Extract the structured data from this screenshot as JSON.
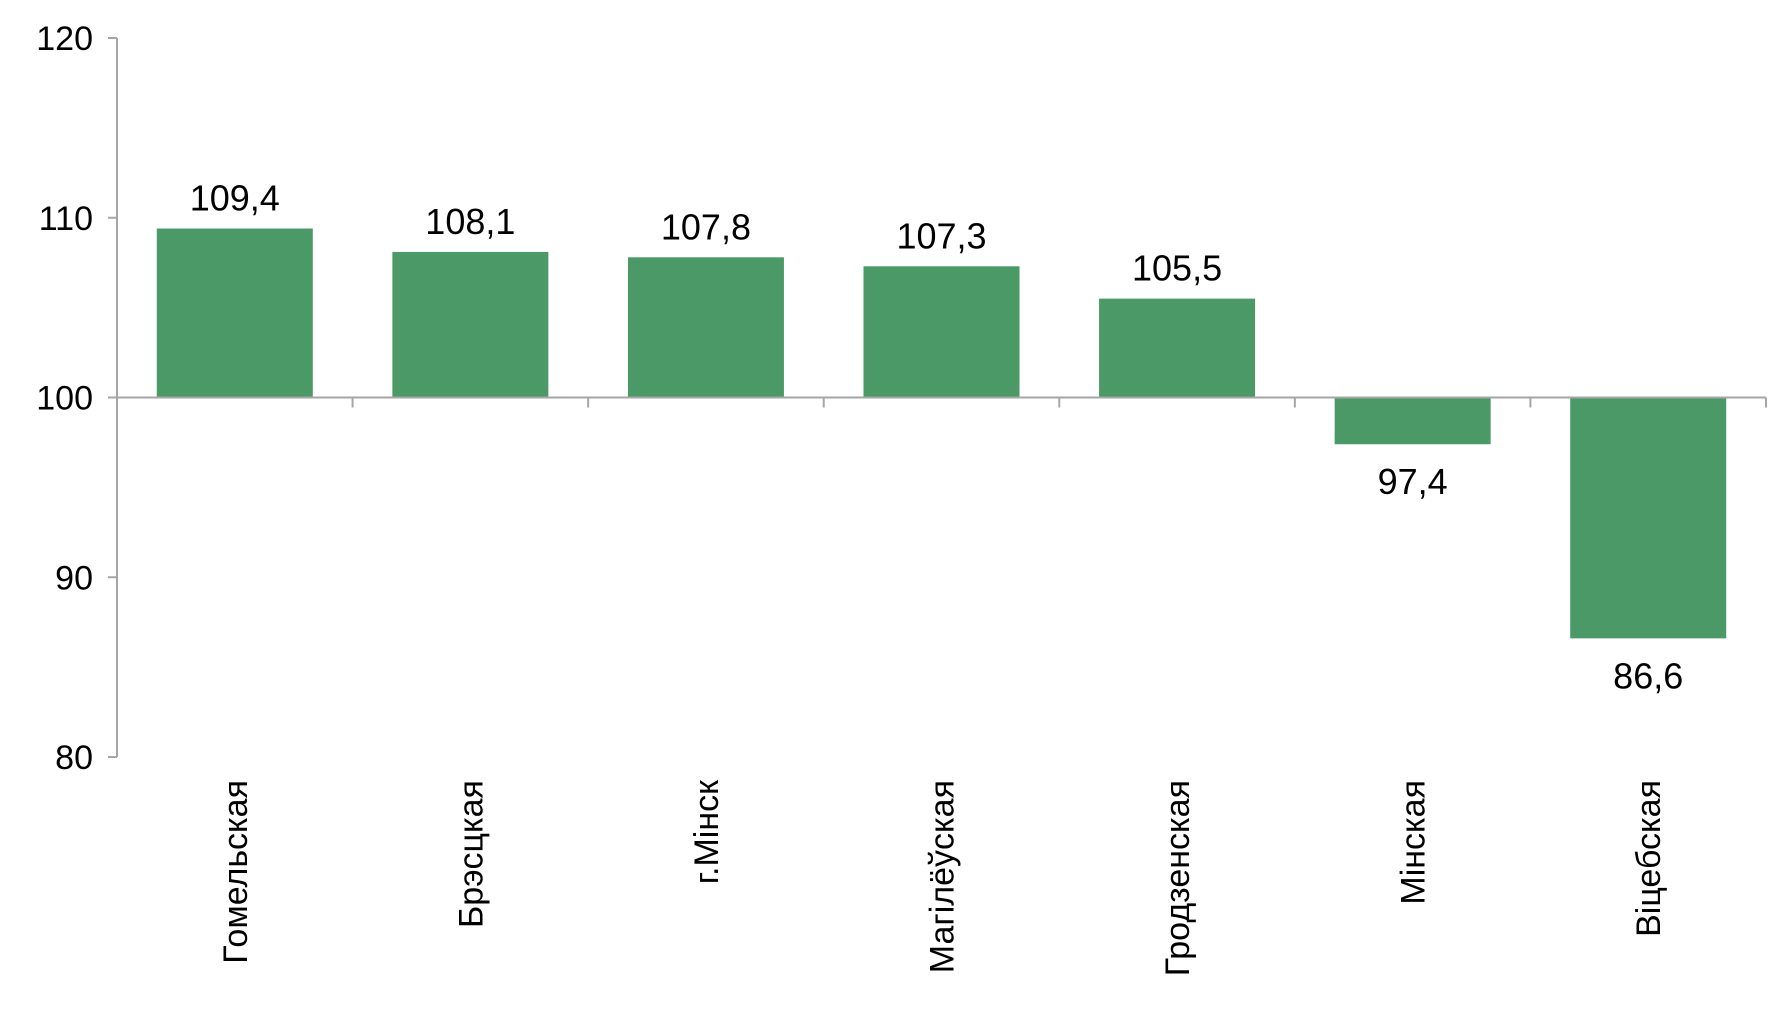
{
  "chart_data": {
    "type": "bar",
    "title": "",
    "xlabel": "",
    "ylabel": "",
    "baseline": 100,
    "ylim": [
      80,
      120
    ],
    "yticks": [
      80,
      90,
      100,
      110,
      120
    ],
    "grid": false,
    "legend": "none",
    "bar_color": "#4a9966",
    "categories": [
      "Гомельская",
      "Брэсцкая",
      "г.Мінск",
      "Магілёўская",
      "Гродзенская",
      "Мінская",
      "Віцебская"
    ],
    "values": [
      109.4,
      108.1,
      107.8,
      107.3,
      105.5,
      97.4,
      86.6
    ],
    "data_labels": [
      "109,4",
      "108,1",
      "107,8",
      "107,3",
      "105,5",
      "97,4",
      "86,6"
    ]
  }
}
